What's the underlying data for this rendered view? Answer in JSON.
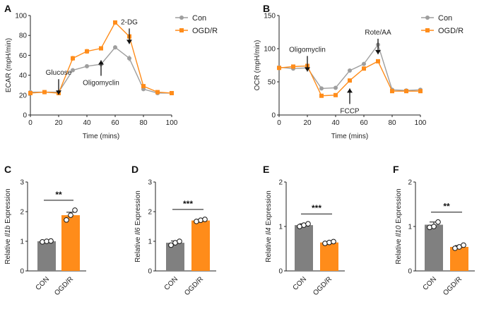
{
  "colors": {
    "con": "#9e9e9e",
    "ogd": "#ff8c1a",
    "bar_con": "#808080",
    "bar_ogd": "#ff8c1a"
  },
  "chart_data": [
    {
      "panel": "A",
      "type": "line",
      "xlabel": "Time (mins)",
      "ylabel": "ECAR (mpH/min)",
      "xlim": [
        0,
        100
      ],
      "ylim": [
        0,
        100
      ],
      "xticks": [
        "0",
        "20",
        "40",
        "60",
        "80",
        "100"
      ],
      "yticks": [
        "0",
        "20",
        "40",
        "60",
        "80",
        "100"
      ],
      "x": [
        0,
        10,
        20,
        30,
        40,
        50,
        60,
        70,
        80,
        90,
        100
      ],
      "series": [
        {
          "name": "Con",
          "values": [
            23,
            23,
            23,
            45,
            49,
            51,
            68,
            57,
            26,
            22,
            22
          ],
          "err": [
            1,
            1,
            1,
            2,
            1.5,
            1.5,
            2,
            3,
            1,
            1,
            1
          ]
        },
        {
          "name": "OGD/R",
          "values": [
            22,
            23,
            22,
            57,
            64,
            67,
            93,
            79,
            29,
            23,
            22
          ],
          "err": [
            1,
            1,
            1,
            2.5,
            2.5,
            2,
            1.5,
            3,
            1,
            1,
            1
          ]
        }
      ],
      "legend": [
        "Con",
        "OGD/R"
      ],
      "annotations": [
        {
          "text": "Glucose",
          "x": 20,
          "y": 36,
          "arrow": "down"
        },
        {
          "text": "Oligomyclin",
          "x": 50,
          "y": 55,
          "arrow": "up"
        },
        {
          "text": "2-DG",
          "x": 70,
          "y": 87,
          "arrow": "down"
        }
      ]
    },
    {
      "panel": "B",
      "type": "line",
      "xlabel": "Time (mins)",
      "ylabel": "OCR (mpH/min)",
      "xlim": [
        0,
        100
      ],
      "ylim": [
        0,
        150
      ],
      "xticks": [
        "0",
        "20",
        "40",
        "60",
        "80",
        "100"
      ],
      "yticks": [
        "0",
        "50",
        "100",
        "150"
      ],
      "x": [
        0,
        10,
        20,
        30,
        40,
        50,
        60,
        70,
        80,
        90,
        100
      ],
      "series": [
        {
          "name": "Con",
          "values": [
            72,
            70,
            71,
            40,
            41,
            67,
            77,
            106,
            38,
            37,
            38
          ],
          "err": [
            2,
            2,
            2,
            1.5,
            1.5,
            2,
            3,
            4,
            2,
            1.5,
            1.5
          ]
        },
        {
          "name": "OGD/R",
          "values": [
            71,
            73,
            74,
            29,
            30,
            52,
            70,
            81,
            36,
            36,
            36
          ],
          "err": [
            2,
            2,
            2,
            1.5,
            1.5,
            2,
            2,
            2,
            2,
            1.5,
            1.5
          ]
        }
      ],
      "legend": [
        "Con",
        "OGD/R"
      ],
      "annotations": [
        {
          "text": "Oligomyclin",
          "x": 20,
          "y": 89,
          "arrow": "down"
        },
        {
          "text": "FCCP",
          "x": 50,
          "y": 40,
          "arrow": "up"
        },
        {
          "text": "Rote/AA",
          "x": 70,
          "y": 115,
          "arrow": "down"
        }
      ]
    },
    {
      "panel": "C",
      "type": "bar",
      "gene": "Il1b",
      "ylabel_prefix": "Relative ",
      "ylabel_suffix": " Expression",
      "ylim": [
        0,
        3
      ],
      "yticks": [
        "0",
        "1",
        "2",
        "3"
      ],
      "categories": [
        "CON",
        "OGD/R"
      ],
      "values": [
        1.0,
        1.88
      ],
      "err": [
        0.02,
        0.1
      ],
      "points": [
        [
          0.98,
          1.0,
          1.01
        ],
        [
          1.72,
          1.88,
          2.05
        ]
      ],
      "significance": "**"
    },
    {
      "panel": "D",
      "type": "bar",
      "gene": "Il6",
      "ylabel_prefix": "Relative ",
      "ylabel_suffix": " Expression",
      "ylim": [
        0,
        3
      ],
      "yticks": [
        "0",
        "1",
        "2",
        "3"
      ],
      "categories": [
        "CON",
        "OGD/R"
      ],
      "values": [
        0.95,
        1.7
      ],
      "err": [
        0.06,
        0.03
      ],
      "points": [
        [
          0.87,
          0.95,
          1.0
        ],
        [
          1.67,
          1.71,
          1.74
        ]
      ],
      "significance": "***"
    },
    {
      "panel": "E",
      "type": "bar",
      "gene": "Il4",
      "ylabel_prefix": "Relative ",
      "ylabel_suffix": " Expression",
      "ylim": [
        0,
        2
      ],
      "yticks": [
        "0",
        "1",
        "2"
      ],
      "categories": [
        "CON",
        "OGD/R"
      ],
      "values": [
        1.03,
        0.64
      ],
      "err": [
        0.03,
        0.02
      ],
      "points": [
        [
          1.0,
          1.03,
          1.06
        ],
        [
          0.62,
          0.64,
          0.66
        ]
      ],
      "significance": "***"
    },
    {
      "panel": "F",
      "type": "bar",
      "gene": "Il10",
      "ylabel_prefix": "Relative ",
      "ylabel_suffix": " Expression",
      "ylim": [
        0,
        2
      ],
      "yticks": [
        "0",
        "1",
        "2"
      ],
      "categories": [
        "CON",
        "OGD/R"
      ],
      "values": [
        1.04,
        0.54
      ],
      "err": [
        0.06,
        0.03
      ],
      "points": [
        [
          0.98,
          1.0,
          1.1
        ],
        [
          0.51,
          0.54,
          0.58
        ]
      ],
      "significance": "**"
    }
  ]
}
